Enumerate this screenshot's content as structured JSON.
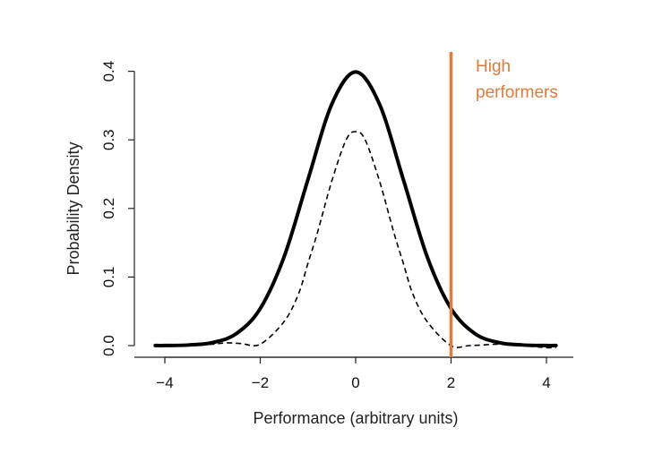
{
  "chart_data": {
    "type": "line",
    "title": "",
    "xlabel": "Performance (arbitrary units)",
    "ylabel": "Probability Density",
    "xlim": [
      -4.25,
      4.25
    ],
    "ylim": [
      0,
      0.4
    ],
    "x_ticks": [
      -4,
      -2,
      0,
      2,
      4
    ],
    "x_tick_labels": [
      "−4",
      "−2",
      "0",
      "2",
      "4"
    ],
    "y_ticks": [
      0.0,
      0.1,
      0.2,
      0.3,
      0.4
    ],
    "y_tick_labels": [
      "0.0",
      "0.1",
      "0.2",
      "0.3",
      "0.4"
    ],
    "grid": false,
    "series": [
      {
        "style": "solid",
        "color": "#000000",
        "x": [
          -4.2,
          -4.0,
          -3.5,
          -3.0,
          -2.5,
          -2.0,
          -1.5,
          -1.0,
          -0.5,
          0.0,
          0.5,
          1.0,
          1.5,
          2.0,
          2.5,
          3.0,
          3.5,
          4.0,
          4.2
        ],
        "y": [
          0.0001,
          0.0001,
          0.0009,
          0.0044,
          0.0175,
          0.054,
          0.1295,
          0.242,
          0.352,
          0.399,
          0.352,
          0.242,
          0.1295,
          0.054,
          0.0175,
          0.0044,
          0.0009,
          0.0001,
          0.0001
        ]
      },
      {
        "style": "dashed",
        "color": "#000000",
        "x": [
          -4.2,
          -3.5,
          -3.0,
          -2.7,
          -2.4,
          -2.0,
          -1.5,
          -1.2,
          -1.0,
          -0.8,
          -0.5,
          -0.2,
          0.0,
          0.2,
          0.5,
          0.8,
          1.0,
          1.2,
          1.5,
          2.0,
          2.4,
          3.0,
          3.5,
          4.0,
          4.2
        ],
        "y": [
          0.0,
          0.0,
          0.002,
          0.004,
          0.003,
          0.002,
          0.035,
          0.075,
          0.12,
          0.165,
          0.24,
          0.3,
          0.312,
          0.3,
          0.24,
          0.165,
          0.12,
          0.075,
          0.035,
          0.0,
          0.0,
          0.002,
          0.0,
          -0.003,
          -0.003
        ]
      }
    ],
    "vline": {
      "x": 2,
      "color": "#e07b39",
      "label_lines": [
        "High",
        "performers"
      ]
    }
  }
}
